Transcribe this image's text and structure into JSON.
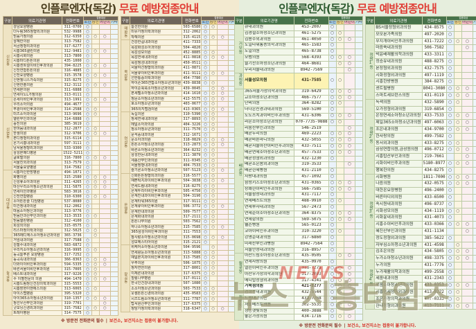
{
  "title": {
    "black": "인플루엔자(독감)",
    "red": "무료 예방접종안내"
  },
  "footer": {
    "left": "※ 방문전 전화문의 필수",
    "divider": "|",
    "right": "보건소, 보건지소는 접종이 불가합니다."
  },
  "watermark": {
    "small": "NEWS",
    "big": "뉴스 시흥타임즈"
  },
  "colors": {
    "left_bg": "#f3ead0",
    "right_bg": "#e6eedd",
    "left_header": "#6f655a",
    "right_header": "#47724a",
    "accent_red": "#e03e36",
    "mark_cols": [
      "#9ec7e8",
      "#f5d98b",
      "#f5b8c4",
      "#bfe0ee"
    ]
  },
  "headers": {
    "gubun": "구분",
    "name": "의료기관명",
    "phone": "전화번호",
    "target": "접종대상",
    "marks": [
      "노인",
      "임신",
      "어린이",
      "기타"
    ],
    "mark_symbol": "○"
  },
  "tables": [
    {
      "id": "t-la",
      "page": "left",
      "groups": [
        [
          "신천동",
          15
        ],
        [
          "신현동",
          15
        ],
        [
          "대야동",
          14
        ],
        [
          "능곡동",
          16
        ]
      ],
      "rows": [
        [
          "강남요양병원",
          "311-0700",
          "100"
        ],
        [
          "더누림365정형외과의원",
          "532-9988",
          "100"
        ],
        [
          "믿음가정의원",
          "312-6350",
          "111"
        ],
        [
          "삼혜한의원",
          "313-7582",
          "100"
        ],
        [
          "서금정형외과의원",
          "317-6277",
          "100"
        ],
        [
          "시흥365클린의원",
          "312-9481",
          "111"
        ],
        [
          "시흥시화의원",
          "313-7800",
          "100"
        ],
        [
          "시흥마디튼튼의원",
          "435-1000",
          "100"
        ],
        [
          "시흥센트럴이비인후과의원",
          "394-8225",
          "111"
        ],
        [
          "신천연합튼튼의원",
          "316-4885",
          "100"
        ],
        [
          "신천요양병원",
          "315-3578",
          "111"
        ],
        [
          "신현웰니스가족의원",
          "315-8275",
          "100"
        ],
        [
          "신현한솔의원",
          "312-3112",
          "111"
        ],
        [
          "연세본의원",
          "311-6888",
          "100"
        ],
        [
          "연세이노L가정의원",
          "313-0111",
          "100"
        ],
        [
          "은세이비인후과의원",
          "313-1991",
          "111"
        ],
        [
          "우리소아의원",
          "494-4677",
          "100"
        ],
        [
          "부광이비인후과의원",
          "314-2588",
          "110"
        ],
        [
          "미즈소아과의원",
          "313-9696",
          "110"
        ],
        [
          "열린부인과의원",
          "314-6888",
          "100"
        ],
        [
          "중진의원",
          "385-3619",
          "100"
        ],
        [
          "한마음내과의원",
          "312-2877",
          "110"
        ],
        [
          "한생의원",
          "312-9706",
          "111"
        ],
        [
          "본디정형외과의원",
          "315-6114",
          "100"
        ],
        [
          "온기시흥내과의원",
          "597-3111",
          "100"
        ],
        [
          "남서울정형외과의원",
          "533-9300",
          "100"
        ],
        [
          "삼성본메디병원",
          "1522-5211",
          "100"
        ],
        [
          "글로벌의원",
          "316-7800",
          "111"
        ],
        [
          "서울진외과의원",
          "313-7579",
          "100"
        ],
        [
          "서울숲요양병원",
          "314-7582",
          "100"
        ],
        [
          "시흥자인한방병원",
          "494-1071",
          "100"
        ],
        [
          "화평의원",
          "315-2580",
          "111"
        ],
        [
          "신성휴소아과의원",
          "311-4265",
          "111"
        ],
        [
          "마산우리소아청소년과의원",
          "311-5875",
          "111"
        ],
        [
          "연세이안과병원",
          "583-3016",
          "100"
        ],
        [
          "신천연합병원",
          "310-6300",
          "111"
        ],
        [
          "소아튼튼슬 디딤병원",
          "537-8080",
          "100"
        ],
        [
          "미건정내과의원",
          "312-2062",
          "100"
        ],
        [
          "마음소아정신과의원",
          "313-9776",
          "100"
        ],
        [
          "믿음안과산부인과의원",
          "313-3533",
          "110"
        ],
        [
          "믿음열린병원",
          "312-4100",
          "100"
        ],
        [
          "희성외의원",
          "315-0575",
          "100"
        ],
        [
          "리스마정의학과의원",
          "312-5025",
          "110"
        ],
        [
          "365메디에스소아청소년과의원",
          "365-3736",
          "010"
        ],
        [
          "거임내과의원",
          "317-7588",
          "100"
        ],
        [
          "김철수내과의원",
          "583-6872",
          "100"
        ],
        [
          "우리지소아청소년과의원",
          "316-9995",
          "110"
        ],
        [
          "능곡늘푸른 요양병원",
          "317-7252",
          "100"
        ],
        [
          "능곡속내과의원",
          "366-8363",
          "111"
        ],
        [
          "더와이이비인후과의원",
          "594-5335",
          "111"
        ],
        [
          "바른서울이비인후과의원",
          "315-7005",
          "110"
        ],
        [
          "베스트내과의원",
          "317-9226",
          "110"
        ],
        [
          "수 이혈전문의 의원",
          "494-1470",
          "111"
        ],
        [
          "시흥드림정신건강의학과의원",
          "315-5553",
          "100"
        ],
        [
          "시흥장현이앤에스의원",
          "313-6065",
          "110"
        ],
        [
          "아이스랩병원",
          "395-5320",
          "100"
        ],
        [
          "아이365소아청소년과의원",
          "310-1357",
          "111"
        ],
        [
          "정선우산부인과의원",
          "319-7701",
          "001"
        ],
        [
          "굿모닝신경외과의원",
          "315-7582",
          "111"
        ],
        [
          "트레아병원",
          "314-7575",
          "100"
        ]
      ]
    },
    {
      "id": "t-lb",
      "page": "left",
      "groups": [
        [
          "매화동",
          3
        ],
        [
          "목감동",
          14
        ],
        [
          "연성동",
          12
        ],
        [
          "은행동",
          14
        ],
        [
          "장곡동",
          13
        ]
      ],
      "rows": [
        [
          "늘선한의원",
          "503-6580",
          "110"
        ],
        [
          "미유가정의학과의원",
          "312-2062",
          "100"
        ],
        [
          "착해의원",
          "315-4115",
          "111"
        ],
        [
          "건강한길내과의원",
          "411-7333",
          "100"
        ],
        [
          "목감화성소아과의원",
          "504-4820",
          "100"
        ],
        [
          "목감성모의원",
          "452-8885",
          "110"
        ],
        [
          "목감연세내과의원",
          "411-0818",
          "111"
        ],
        [
          "목감정성내과의원",
          "450-0511",
          "100"
        ],
        [
          "서울하선정형외과의원",
          "411-0871",
          "100"
        ],
        [
          "서울큐이비인후과의원",
          "411-9111",
          "111"
        ],
        [
          "선한통증의학과의원",
          "454-7780",
          "100"
        ],
        [
          "하이존365연합소아청소년과의원",
          "439-8838",
          "110"
        ],
        [
          "하이준쑥쑥소아청소년과의원",
          "439-0045",
          "011"
        ],
        [
          "본세텔소아청소년과의원",
          "414-1610",
          "111"
        ],
        [
          "정문소아청소년과의원",
          "413-5575",
          "111"
        ],
        [
          "호소아청소년과의원",
          "403-0677",
          "110"
        ],
        [
          "365의지랩검의원",
          "413-0365",
          "111"
        ],
        [
          "녹십의원",
          "310-5390",
          "110"
        ],
        [
          "정세연세내과의원",
          "317-8893",
          "110"
        ],
        [
          "메일소아과의원",
          "404-3226",
          "110"
        ],
        [
          "정소아청소년과의원",
          "311-7570",
          "110"
        ],
        [
          "문석중내과의원",
          "312-1671",
          "100"
        ],
        [
          "문소아과의원",
          "318-0829",
          "111"
        ],
        [
          "튼튼소아청소년과의원",
          "313-2873",
          "111"
        ],
        [
          "바른소아청소년과의원",
          "364-8232",
          "110"
        ],
        [
          "삼성한돈내과의원",
          "311-3879",
          "110"
        ],
        [
          "세종산부인과의원",
          "311-0345",
          "110"
        ],
        [
          "서울정형내과의원",
          "404-7533",
          "110"
        ],
        [
          "슬기론소아청소년과의원",
          "507-5123",
          "111"
        ],
        [
          "신화튼튼정형외과의원",
          "316-5577",
          "110"
        ],
        [
          "예쁜턱치과이비인후과의원",
          "504-3838",
          "111"
        ],
        [
          "연세드림내과의원",
          "316-8275",
          "110"
        ],
        [
          "은계두리이비인후과의원",
          "505-4750",
          "110"
        ],
        [
          "은계진내과이비인후과의원",
          "504-3190",
          "110"
        ],
        [
          "은계타워365의원",
          "317-9111",
          "110"
        ],
        [
          "은계큐이비인후과의원",
          "506-3772",
          "111"
        ],
        [
          "은계한내과의원",
          "509-7577",
          "110"
        ],
        [
          "은계화내과의원",
          "317-2111",
          "110"
        ],
        [
          "튼튼나무의원",
          "503-7562",
          "110"
        ],
        [
          "하나소아청소년과의원",
          "315-7585",
          "111"
        ],
        [
          "365삼성이비인후과의원",
          "311-7553",
          "100"
        ],
        [
          "참사랑소아청소년과의원",
          "315-0698",
          "111"
        ],
        [
          "성모헤스티아의원",
          "315-2121",
          "100"
        ],
        [
          "위케어소아청소년과의원",
          "504-9596",
          "010"
        ],
        [
          "연세왕눈소아청소년과의원",
          "313-5888",
          "110"
        ],
        [
          "예일본치과이비인후과의원",
          "313-7585",
          "110"
        ],
        [
          "우주의원",
          "506-1075",
          "110"
        ],
        [
          "정자연한의원",
          "317-8001",
          "110"
        ],
        [
          "이체른내과의원",
          "317-6375",
          "110"
        ],
        [
          "힐링나무병원",
          "317-0111",
          "100"
        ],
        [
          "한국인건강내과의원",
          "507-1080",
          "100"
        ],
        [
          "소소아청소년과의원",
          "503-7533",
          "110"
        ],
        [
          "웃샘튼튼신경외과의원",
          "435-0583",
          "110"
        ],
        [
          "시즈드림소아청소년과의원",
          "311-7787",
          "110"
        ],
        [
          "탑서원산부인과의원",
          "317-6375",
          "100"
        ],
        [
          "청담가정의학과의원",
          "318-6347",
          "111"
        ]
      ]
    },
    {
      "id": "t-ra",
      "page": "right",
      "groups": [
        [
          "거모동",
          8
        ],
        [
          "과림동",
          1
        ],
        [
          "배곧동",
          27
        ],
        [
          "월곶동",
          5
        ],
        [
          "정왕동",
          6
        ]
      ],
      "hl": {
        "8": "hl-y",
        "41": "hl-w"
      },
      "rows": [
        [
          "큐내과의원",
          "453-2007",
          "100"
        ],
        [
          "김경철소아청소년과의원",
          "461-5275",
          "110"
        ],
        [
          "김용수외과의원",
          "461-4050",
          "111"
        ],
        [
          "도일타워통증의학과의원",
          "465-1583",
          "100"
        ],
        [
          "도일의원",
          "465-8738",
          "100"
        ],
        [
          "모범의원",
          "568-4393",
          "111"
        ],
        [
          "슬기찬소아청소년과의원",
          "464-8681",
          "011"
        ],
        [
          "우리서울내과의원",
          "8942-7569",
          "001"
        ],
        [
          "서울성모의원",
          "431-7585",
          "110"
        ],
        [
          "365서울가정의학과의원",
          "319-6429",
          "111"
        ],
        [
          "교소아청소년과의원",
          "466-7577",
          "111"
        ],
        [
          "단비의원",
          "364-8282",
          "110"
        ],
        [
          "더나은신경과내과의원",
          "569-5100",
          "100"
        ],
        [
          "도도스치과이비인후과의원",
          "431-6306",
          "111"
        ],
        [
          "라온소아청소년과의원",
          "070-7735-9888",
          "110"
        ],
        [
          "리움산부인과의원",
          "546-2519",
          "001"
        ],
        [
          "배곧누리의원",
          "469-2223",
          "111"
        ],
        [
          "배곧바른마디의원",
          "432-5055",
          "111"
        ],
        [
          "배곧서울아산이비인후과의원",
          "433-7511",
          "111"
        ],
        [
          "배곧연세소아청소년과의원",
          "457-7533",
          "111"
        ],
        [
          "배곧정형외과의원",
          "432-1230",
          "100"
        ],
        [
          "배곧조은몸외과의원",
          "319-3533",
          "001"
        ],
        [
          "배곧한세병원",
          "431-2110",
          "100"
        ],
        [
          "사랑내과의원",
          "457-1092",
          "100"
        ],
        [
          "삼성키즈소아청소년과의원",
          "431-0365",
          "111"
        ],
        [
          "상쾌한이비인후과의원",
          "566-7585",
          "111"
        ],
        [
          "서울삼성내과의원",
          "431-7117",
          "100"
        ],
        [
          "연세베스트의원",
          "488-9910",
          "110"
        ],
        [
          "연세부자내과의원",
          "567-2473",
          "100"
        ],
        [
          "연세준이소아청소년과의원",
          "364-8375",
          "111"
        ],
        [
          "연세항의원",
          "569-5075",
          "111"
        ],
        [
          "웰슨병원",
          "565-0123",
          "100"
        ],
        [
          "코아이비인후과의원",
          "310-3220",
          "110"
        ],
        [
          "강영준내과의원",
          "317-6860",
          "100"
        ],
        [
          "미래산부인과병원",
          "8942-7564",
          "100"
        ],
        [
          "서울안성내과의원",
          "316-8957",
          "100"
        ],
        [
          "아산드림소아청소년과의원",
          "435-0505",
          "011"
        ],
        [
          "연세사랑의원",
          "435-0970",
          "100"
        ],
        [
          "열린이비인후과의원",
          "318-7275",
          "111"
        ],
        [
          "아산우가정의학과의원",
          "317-2093",
          "111"
        ],
        [
          "메디탑정형외과의원",
          "317-4341",
          "111"
        ],
        [
          "거북섬의원",
          "421-8277",
          "111"
        ],
        [
          "김희승내과의원",
          "432-5544",
          "110"
        ],
        [
          "드림내과의원",
          "431-7768",
          "100"
        ],
        [
          "서울베스트의원",
          "362-5533",
          "111"
        ],
        [
          "정왕햇빛의원",
          "400-3888",
          "100"
        ],
        [
          "좋은가정의원",
          "434-1716",
          "111"
        ]
      ]
    },
    {
      "id": "t-rb",
      "page": "right",
      "groups": [
        [
          "정왕1동",
          11
        ],
        [
          "정왕2동",
          11
        ],
        [
          "정왕3동",
          11
        ],
        [
          "정왕4동",
          9
        ]
      ],
      "rows": [
        [
          "BS서울정형외과의원",
          "434-8575",
          "100"
        ],
        [
          "모모본가족의원",
          "497-2020",
          "100"
        ],
        [
          "무지개이비인후과의원",
          "431-7222",
          "111"
        ],
        [
          "마음쑥내과의원",
          "506-7582",
          "001"
        ],
        [
          "박윤배재활의학과의원",
          "433-3311",
          "100"
        ],
        [
          "정승유내과의원",
          "488-8275",
          "100"
        ],
        [
          "본정형외과의원",
          "432-7575",
          "100"
        ],
        [
          "시화정형외과의원",
          "497-1119",
          "100"
        ],
        [
          "시흥한방병원",
          "384-8275",
          "100"
        ],
        [
          "센트럴병원",
          "8041-3080",
          "111"
        ],
        [
          "스마트세브란스의원",
          "431-0119",
          "111"
        ],
        [
          "녹색의원",
          "432-5890",
          "110"
        ],
        [
          "오가정형외과의원",
          "319-6854",
          "100"
        ],
        [
          "온정연세소아청소년과의원",
          "433-7533",
          "111"
        ],
        [
          "제일365소아청소년과의원",
          "497-6063",
          "111"
        ],
        [
          "조은내과의원",
          "434-9700",
          "111"
        ],
        [
          "한사랑의원",
          "499-7582",
          "100"
        ],
        [
          "동서외과의원",
          "433-8275",
          "110"
        ],
        [
          "삼성연합의원,금성원의원",
          "496-0712",
          "111"
        ],
        [
          "시흥탑산부인과의원",
          "219-7661",
          "001"
        ],
        [
          "시화이비인후과의원",
          "5180-8977",
          "111"
        ],
        [
          "행복한의원",
          "434-8275",
          "100"
        ],
        [
          "시화병원",
          "1811-7000",
          "111"
        ],
        [
          "나음의원",
          "432-0575",
          "111"
        ],
        [
          "대한온요양병원",
          "496-2400",
          "100"
        ],
        [
          "바른마디외의원",
          "433-6500",
          "100"
        ],
        [
          "속시원내과의원",
          "496-8737",
          "100"
        ],
        [
          "시화성모의원",
          "434-1119",
          "110"
        ],
        [
          "시화윤내과의원",
          "431-4073",
          "100"
        ],
        [
          "시흥수이비인후과의원",
          "433-0366",
          "111"
        ],
        [
          "혜진산부인과의원",
          "431-1134",
          "001"
        ],
        [
          "정도정형외과의원",
          "385-5622",
          "100"
        ],
        [
          "자부심소아청소년과의원",
          "431-4598",
          "010"
        ],
        [
          "김조은의원",
          "434-5805",
          "111"
        ],
        [
          "누가소아청소년과의원",
          "498-3375",
          "111"
        ],
        [
          "누가의원",
          "431-7776",
          "100"
        ],
        [
          "누가재활의학과의원",
          "499-2558",
          "100"
        ],
        [
          "세움내과의원",
          "431-2343",
          "100"
        ],
        [
          "세움소아청소년과의원",
          "433-0353",
          "111"
        ],
        [
          "시흥연세정형외과의원",
          "413-8222",
          "110"
        ],
        [
          "조은가정의학과의원",
          "497-0333",
          "110"
        ],
        [
          "한나정형외과의원",
          "413-7111",
          "111"
        ]
      ]
    }
  ]
}
